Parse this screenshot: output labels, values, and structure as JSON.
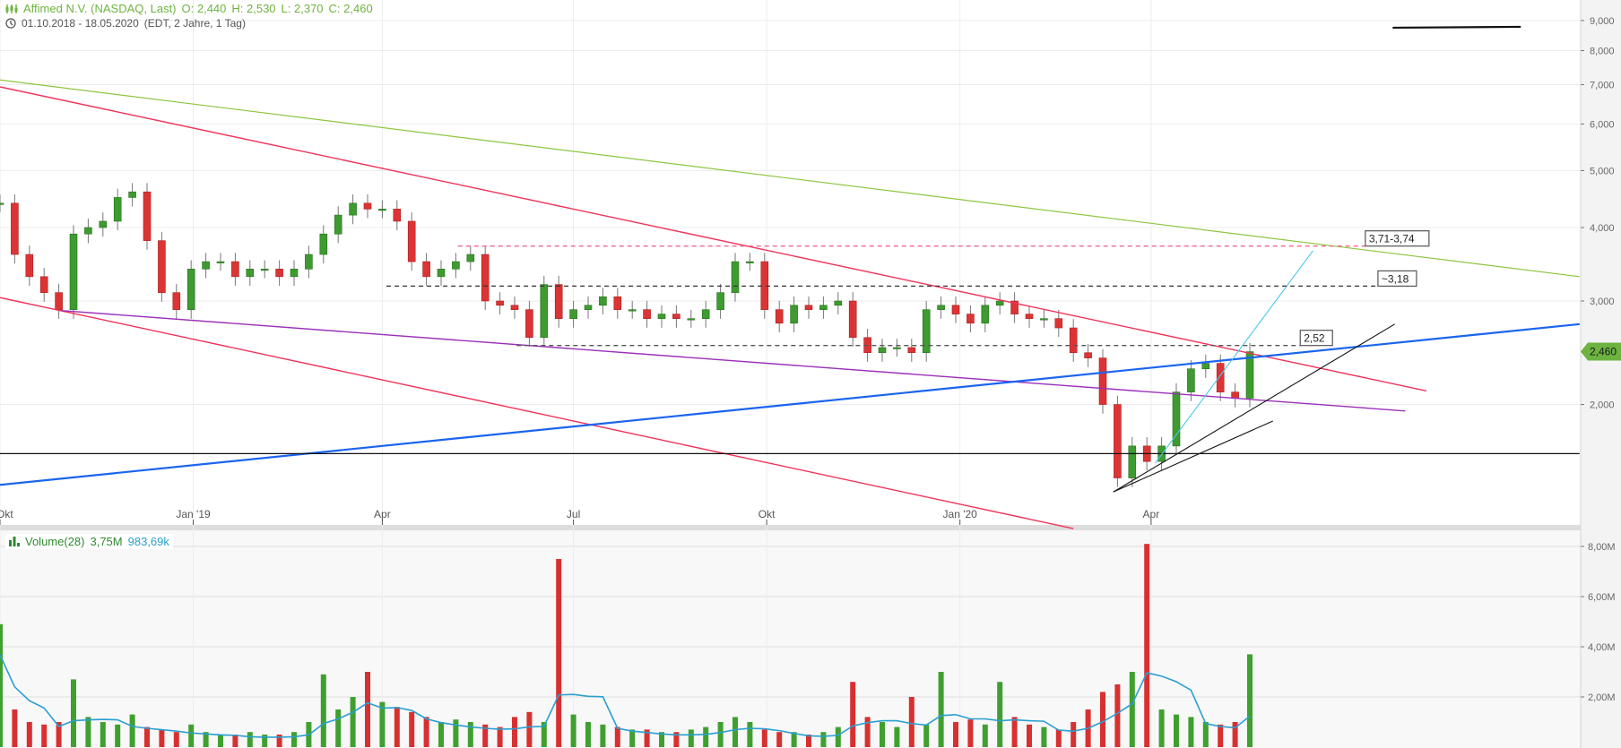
{
  "header": {
    "title": "Affimed N.V. (NASDAQ, Last)",
    "open": "O: 2,440",
    "high": "H: 2,530",
    "low": "L: 2,370",
    "close": "C: 2,460",
    "range": "01.10.2018 - 18.05.2020",
    "info": "(EDT, 2 Jahre, 1 Tag)"
  },
  "volume_header": {
    "label": "Volume(28)",
    "value": "3,75M",
    "ma_value": "983,69k"
  },
  "colors": {
    "up": "#3d9b2f",
    "down": "#dc3434",
    "header_green": "#6db33f",
    "volume_ma": "#2a9fd0",
    "last_price_badge": "#6db33f"
  },
  "chart_data": [
    {
      "type": "candlestick",
      "period_start": "2018-10-01",
      "period_end": "2020-05-18",
      "y_scale": "log",
      "ylim": [
        1.2,
        9.5
      ],
      "y_ticks": [
        {
          "value": 9,
          "label": "9,000"
        },
        {
          "value": 8,
          "label": "8,000"
        },
        {
          "value": 7,
          "label": "7,000"
        },
        {
          "value": 6,
          "label": "6,000"
        },
        {
          "value": 5,
          "label": "5,000"
        },
        {
          "value": 4,
          "label": "4,000"
        },
        {
          "value": 3,
          "label": "3,000"
        },
        {
          "value": 2,
          "label": "2,000"
        }
      ],
      "x_ticks": [
        {
          "date": "2018-10-01",
          "label": "Okt"
        },
        {
          "date": "2019-01-01",
          "label": "Jan '19"
        },
        {
          "date": "2019-04-01",
          "label": "Apr"
        },
        {
          "date": "2019-07-01",
          "label": "Jul"
        },
        {
          "date": "2019-10-01",
          "label": "Okt"
        },
        {
          "date": "2020-01-01",
          "label": "Jan '20"
        },
        {
          "date": "2020-04-01",
          "label": "Apr"
        }
      ],
      "grid": true,
      "last_price": {
        "value": 2.46,
        "label": "2,460"
      },
      "weekly_close": [
        4.4,
        3.6,
        3.3,
        3.1,
        2.9,
        3.9,
        4.0,
        4.1,
        4.5,
        4.6,
        3.8,
        3.1,
        2.9,
        3.4,
        3.5,
        3.5,
        3.3,
        3.4,
        3.4,
        3.3,
        3.4,
        3.6,
        3.9,
        4.2,
        4.4,
        4.3,
        4.3,
        4.1,
        3.5,
        3.3,
        3.4,
        3.5,
        3.6,
        3.0,
        2.95,
        2.9,
        2.6,
        3.2,
        2.8,
        2.9,
        2.95,
        3.05,
        2.9,
        2.9,
        2.8,
        2.85,
        2.8,
        2.8,
        2.9,
        3.1,
        3.5,
        3.5,
        2.9,
        2.75,
        2.95,
        2.9,
        2.95,
        3.0,
        2.6,
        2.45,
        2.5,
        2.5,
        2.45,
        2.9,
        2.95,
        2.85,
        2.75,
        2.95,
        3.0,
        2.85,
        2.8,
        2.8,
        2.7,
        2.45,
        2.4,
        2.0,
        1.5,
        1.7,
        1.6,
        1.7,
        2.1,
        2.3,
        2.35,
        2.1,
        2.05,
        2.46
      ],
      "trendlines": [
        {
          "name": "green-downtrend",
          "color": "#8cc63f",
          "width": 1.2,
          "from": [
            "2018-10-01",
            7.13
          ],
          "to": [
            "2020-10-22",
            3.3
          ]
        },
        {
          "name": "red-upper-channel",
          "color": "#f0325a",
          "width": 1.4,
          "from": [
            "2018-10-01",
            6.94
          ],
          "to": [
            "2020-08-10",
            2.11
          ]
        },
        {
          "name": "red-lower-channel",
          "color": "#f0325a",
          "width": 1.4,
          "from": [
            "2018-10-01",
            3.04
          ],
          "to": [
            "2020-02-24",
            1.23
          ]
        },
        {
          "name": "purple-support",
          "color": "#9b30b8",
          "width": 1.4,
          "from": [
            "2018-10-30",
            2.89
          ],
          "to": [
            "2020-07-31",
            1.95
          ]
        },
        {
          "name": "blue-uptrend",
          "color": "#1a64f0",
          "width": 2.2,
          "from": [
            "2018-10-01",
            1.46
          ],
          "to": [
            "2020-10-22",
            2.74
          ]
        },
        {
          "name": "black-horizontal",
          "color": "#111111",
          "width": 1.2,
          "from": [
            "2018-10-01",
            1.65
          ],
          "to": [
            "2020-10-22",
            1.65
          ]
        },
        {
          "name": "black-top-line",
          "color": "#111111",
          "width": 2.2,
          "from": [
            "2020-07-25",
            8.75
          ],
          "to": [
            "2020-09-24",
            8.78
          ]
        },
        {
          "name": "cyan-steep",
          "color": "#4cc8ec",
          "width": 1.1,
          "from": [
            "2020-04-03",
            1.59
          ],
          "to": [
            "2020-06-17",
            3.65
          ]
        },
        {
          "name": "black-rising-1",
          "color": "#111111",
          "width": 1.1,
          "from": [
            "2020-03-14",
            1.42
          ],
          "to": [
            "2020-07-26",
            2.74
          ]
        },
        {
          "name": "black-rising-2",
          "color": "#111111",
          "width": 1.1,
          "from": [
            "2020-03-14",
            1.42
          ],
          "to": [
            "2020-05-29",
            1.875
          ]
        }
      ],
      "levels": [
        {
          "name": "level-resistance-high",
          "color": "#f06a8c",
          "value": 3.72,
          "from": "2019-05-07",
          "to": "2020-07-12",
          "label": "3,71-3,74"
        },
        {
          "name": "level-resistance-mid",
          "color": "#333333",
          "value": 3.18,
          "from": "2019-04-03",
          "to": "2020-07-18",
          "label": "~3,18"
        },
        {
          "name": "level-resistance-low",
          "color": "#555555",
          "value": 2.52,
          "from": "2019-06-04",
          "to": "2020-06-11",
          "label": "2,52"
        }
      ]
    },
    {
      "type": "bar",
      "name": "Volume(28)",
      "units": "M",
      "ylim": [
        0,
        8.5
      ],
      "y_ticks": [
        {
          "value": 8,
          "label": "8,00M"
        },
        {
          "value": 6,
          "label": "6,00M"
        },
        {
          "value": 4,
          "label": "4,00M"
        },
        {
          "value": 2,
          "label": "2,00M"
        }
      ],
      "weekly_volume": [
        4.9,
        1.5,
        1.0,
        0.9,
        1.0,
        2.7,
        1.2,
        1.0,
        0.9,
        1.3,
        0.8,
        0.7,
        0.6,
        0.9,
        0.6,
        0.5,
        0.5,
        0.6,
        0.5,
        0.5,
        0.6,
        1.0,
        2.9,
        1.5,
        2.0,
        3.0,
        1.8,
        1.6,
        1.4,
        1.2,
        1.0,
        1.1,
        1.0,
        0.9,
        0.8,
        1.2,
        1.4,
        1.0,
        7.5,
        1.3,
        1.0,
        0.9,
        0.8,
        0.7,
        0.7,
        0.6,
        0.6,
        0.7,
        0.8,
        1.0,
        1.2,
        1.0,
        0.7,
        0.6,
        0.6,
        0.5,
        0.6,
        0.8,
        2.6,
        1.2,
        1.0,
        0.8,
        2.0,
        0.9,
        3.0,
        1.0,
        1.1,
        0.9,
        2.6,
        1.2,
        0.9,
        0.8,
        0.7,
        1.0,
        1.5,
        2.2,
        2.5,
        3.0,
        8.1,
        1.5,
        1.3,
        1.2,
        1.0,
        0.9,
        1.0,
        3.7
      ]
    }
  ]
}
